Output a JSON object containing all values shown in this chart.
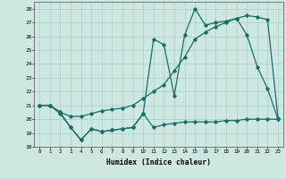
{
  "xlabel": "Humidex (Indice chaleur)",
  "ylabel": "",
  "xlim": [
    -0.5,
    23.5
  ],
  "ylim": [
    18,
    28.5
  ],
  "yticks": [
    18,
    19,
    20,
    21,
    22,
    23,
    24,
    25,
    26,
    27,
    28
  ],
  "xticks": [
    0,
    1,
    2,
    3,
    4,
    5,
    6,
    7,
    8,
    9,
    10,
    11,
    12,
    13,
    14,
    15,
    16,
    17,
    18,
    19,
    20,
    21,
    22,
    23
  ],
  "bg_color": "#cde8e2",
  "line_color": "#1a6e62",
  "grid_color": "#aacec7",
  "line1_x": [
    0,
    1,
    2,
    3,
    4,
    5,
    6,
    7,
    8,
    9,
    10,
    11,
    12,
    13,
    14,
    15,
    16,
    17,
    18,
    19,
    20,
    21,
    22,
    23
  ],
  "line1_y": [
    21.0,
    21.0,
    20.5,
    19.4,
    18.5,
    19.3,
    19.1,
    19.2,
    19.3,
    19.4,
    20.4,
    25.8,
    25.4,
    21.7,
    26.1,
    28.0,
    26.8,
    27.0,
    27.1,
    27.3,
    26.1,
    23.8,
    22.2,
    20.0
  ],
  "line2_x": [
    0,
    1,
    2,
    3,
    4,
    5,
    6,
    7,
    8,
    9,
    10,
    11,
    12,
    13,
    14,
    15,
    16,
    17,
    18,
    19,
    20,
    21,
    22,
    23
  ],
  "line2_y": [
    21.0,
    21.0,
    20.5,
    20.2,
    20.2,
    20.4,
    20.6,
    20.7,
    20.8,
    21.0,
    21.5,
    22.0,
    22.5,
    23.5,
    24.5,
    25.8,
    26.3,
    26.7,
    27.0,
    27.3,
    27.5,
    27.4,
    27.2,
    20.1
  ],
  "line3_x": [
    0,
    1,
    2,
    3,
    4,
    5,
    6,
    7,
    8,
    9,
    10,
    11,
    12,
    13,
    14,
    15,
    16,
    17,
    18,
    19,
    20,
    21,
    22,
    23
  ],
  "line3_y": [
    21.0,
    21.0,
    20.4,
    19.4,
    18.5,
    19.3,
    19.1,
    19.2,
    19.3,
    19.4,
    20.4,
    19.4,
    19.6,
    19.7,
    19.8,
    19.8,
    19.8,
    19.8,
    19.9,
    19.9,
    20.0,
    20.0,
    20.0,
    20.0
  ]
}
